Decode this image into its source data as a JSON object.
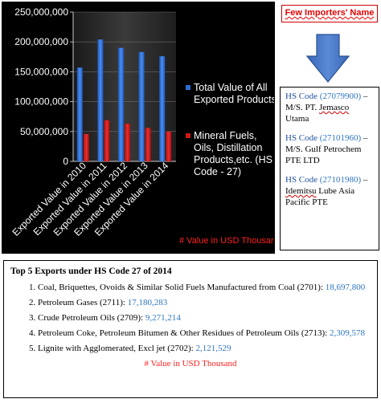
{
  "chart_data": {
    "type": "bar",
    "categories": [
      "Exported Value in 2010",
      "Exported Value in 2011",
      "Exported Value in 2012",
      "Exported Value in 2013",
      "Exported Value in 2014"
    ],
    "series": [
      {
        "name": "Total Value of All Exported Products",
        "color": "#2f6fd6",
        "values": [
          157000000,
          204000000,
          190000000,
          183000000,
          176000000
        ]
      },
      {
        "name": "Mineral Fuels, Oils, Distillation Products,etc. (HS Code - 27)",
        "color": "#d01818",
        "values": [
          46000000,
          69000000,
          63000000,
          56000000,
          50000000
        ]
      }
    ],
    "yticks": [
      "0",
      "50,000,000",
      "100,000,000",
      "150,000,000",
      "200,000,000",
      "250,000,000"
    ],
    "ylim": [
      0,
      250000000
    ],
    "legend_lines": [
      [
        "Total Value of All",
        "Exported Products"
      ],
      [
        "Mineral Fuels,",
        "Oils, Distillation",
        "Products,etc. (HS",
        "Code - 27)"
      ]
    ],
    "legend_position": "right",
    "unit_note": "# Value in USD Thousand"
  },
  "importers": {
    "title": "Few Importers' Name",
    "items": [
      {
        "hs_label": "HS Code",
        "hs_code": "(27079900)",
        "dash": " –",
        "name_lines": [
          "M/S. PT. ",
          "Jemasco",
          " Utama"
        ]
      },
      {
        "hs_label": "HS Code",
        "hs_code": "(27101960)",
        "dash": " –",
        "name_lines": [
          "M/S. Gulf Petrochem PTE LTD"
        ]
      },
      {
        "hs_label": "HS Code",
        "hs_code": "(27101980)",
        "dash": " –",
        "name_lines": [
          "Idemitsu",
          " Lube Asia Pacific PTE"
        ]
      }
    ]
  },
  "exports": {
    "title": "Top 5 Exports under HS Code 27 of 2014",
    "items": [
      {
        "text": "Coal, Briquettes, Ovoids & Similar Solid Fuels Manufactured from Coal (2701):",
        "value": "18,697,800"
      },
      {
        "text": "Petroleum Gases (2711):",
        "value": "17,180,283"
      },
      {
        "text": "Crude Petroleum Oils (2709):",
        "value": "9,271,214"
      },
      {
        "text": "Petroleum Coke, Petroleum Bitumen & Other Residues of Petroleum Oils (2713):",
        "value": "2,309,578"
      },
      {
        "text": "Lignite with Agglomerated, Excl jet (2702):",
        "value": "2,121,529"
      }
    ],
    "note": "# Value in USD Thousand"
  }
}
